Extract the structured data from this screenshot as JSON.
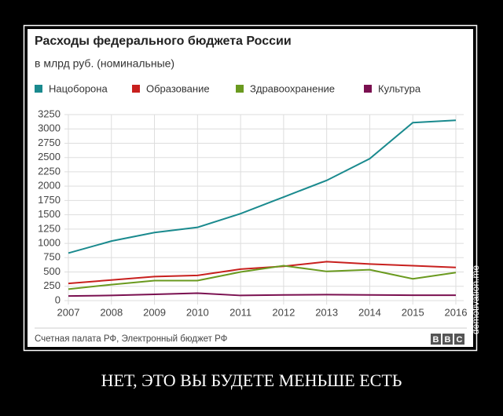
{
  "chart_data": {
    "type": "line",
    "title": "Расходы федерального бюджета России",
    "subtitle": "в млрд руб. (номинальные)",
    "x": [
      2007,
      2008,
      2009,
      2010,
      2011,
      2012,
      2013,
      2014,
      2015,
      2016
    ],
    "xlim": [
      2007,
      2016
    ],
    "xticks": [
      2007,
      2008,
      2009,
      2010,
      2011,
      2012,
      2013,
      2014,
      2015,
      2016
    ],
    "ylim": [
      0,
      3250
    ],
    "yticks": [
      0,
      250,
      500,
      750,
      1000,
      1250,
      1500,
      1750,
      2000,
      2250,
      2500,
      2750,
      3000,
      3250
    ],
    "grid": true,
    "legend": "top",
    "series": [
      {
        "name": "Нацоборона",
        "color": "#1a8a8e",
        "values": [
          830,
          1040,
          1190,
          1280,
          1520,
          1810,
          2100,
          2480,
          3110,
          3150
        ]
      },
      {
        "name": "Образование",
        "color": "#c8201e",
        "values": [
          300,
          360,
          420,
          440,
          550,
          600,
          680,
          640,
          610,
          580
        ]
      },
      {
        "name": "Здравоохранение",
        "color": "#6a9a1f",
        "values": [
          200,
          280,
          350,
          350,
          500,
          610,
          510,
          540,
          380,
          490
        ]
      },
      {
        "name": "Культура",
        "color": "#7a1050",
        "values": [
          80,
          90,
          110,
          130,
          90,
          100,
          105,
          100,
          95,
          95
        ]
      }
    ],
    "source": "Счетная палата РФ, Электронный бюджет РФ"
  },
  "logo": [
    "B",
    "B",
    "C"
  ],
  "watermark": "demotivation.me",
  "caption": "НЕТ, ЭТО ВЫ БУДЕТЕ МЕНЬШЕ ЕСТЬ"
}
